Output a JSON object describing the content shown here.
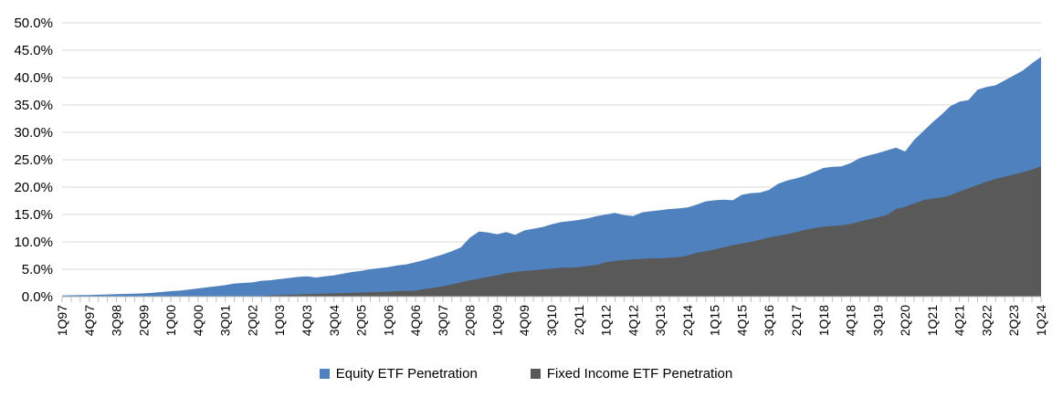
{
  "chart_data": {
    "type": "area",
    "title": "",
    "xlabel": "",
    "ylabel": "",
    "ylim": [
      0,
      50
    ],
    "grid": "horizontal",
    "legend_position": "bottom",
    "stacked": false,
    "gridline_color": "#D9D9D9",
    "axis_color": "#BFBFBF",
    "y_ticks": [
      "0.0%",
      "5.0%",
      "10.0%",
      "15.0%",
      "20.0%",
      "25.0%",
      "30.0%",
      "35.0%",
      "40.0%",
      "45.0%",
      "50.0%"
    ],
    "x_label_every": 3,
    "categories": [
      "1Q97",
      "2Q97",
      "3Q97",
      "4Q97",
      "1Q98",
      "2Q98",
      "3Q98",
      "4Q98",
      "1Q99",
      "2Q99",
      "3Q99",
      "4Q99",
      "1Q00",
      "2Q00",
      "3Q00",
      "4Q00",
      "1Q01",
      "2Q01",
      "3Q01",
      "4Q01",
      "1Q02",
      "2Q02",
      "3Q02",
      "4Q02",
      "1Q03",
      "2Q03",
      "3Q03",
      "4Q03",
      "1Q04",
      "2Q04",
      "3Q04",
      "4Q04",
      "1Q05",
      "2Q05",
      "3Q05",
      "4Q05",
      "1Q06",
      "2Q06",
      "3Q06",
      "4Q06",
      "1Q07",
      "2Q07",
      "3Q07",
      "4Q07",
      "1Q08",
      "2Q08",
      "3Q08",
      "4Q08",
      "1Q09",
      "2Q09",
      "3Q09",
      "4Q09",
      "1Q10",
      "2Q10",
      "3Q10",
      "4Q10",
      "1Q11",
      "2Q11",
      "3Q11",
      "4Q11",
      "1Q12",
      "2Q12",
      "3Q12",
      "4Q12",
      "1Q13",
      "2Q13",
      "3Q13",
      "4Q13",
      "1Q14",
      "2Q14",
      "3Q14",
      "4Q14",
      "1Q15",
      "2Q15",
      "3Q15",
      "4Q15",
      "1Q16",
      "2Q16",
      "3Q16",
      "4Q16",
      "1Q17",
      "2Q17",
      "3Q17",
      "4Q17",
      "1Q18",
      "2Q18",
      "3Q18",
      "4Q18",
      "1Q19",
      "2Q19",
      "3Q19",
      "4Q19",
      "1Q20",
      "2Q20",
      "3Q20",
      "4Q20",
      "1Q21",
      "2Q21",
      "3Q21",
      "4Q21",
      "1Q22",
      "2Q22",
      "3Q22",
      "4Q22",
      "1Q23",
      "2Q23",
      "3Q23",
      "4Q23",
      "1Q24"
    ],
    "series": [
      {
        "name": "Equity ETF Penetration",
        "color": "#4E81BD",
        "values": [
          0.2,
          0.25,
          0.3,
          0.3,
          0.35,
          0.4,
          0.45,
          0.5,
          0.55,
          0.6,
          0.7,
          0.85,
          1.0,
          1.1,
          1.3,
          1.5,
          1.7,
          1.9,
          2.1,
          2.4,
          2.5,
          2.6,
          2.9,
          3.0,
          3.2,
          3.4,
          3.6,
          3.7,
          3.5,
          3.7,
          3.9,
          4.2,
          4.5,
          4.7,
          5.0,
          5.2,
          5.4,
          5.7,
          5.9,
          6.3,
          6.7,
          7.2,
          7.7,
          8.3,
          9.0,
          10.8,
          11.9,
          11.7,
          11.4,
          11.8,
          11.3,
          12.1,
          12.4,
          12.7,
          13.2,
          13.6,
          13.8,
          14.0,
          14.3,
          14.7,
          15.0,
          15.3,
          14.9,
          14.7,
          15.4,
          15.6,
          15.8,
          16.0,
          16.1,
          16.3,
          16.8,
          17.4,
          17.6,
          17.7,
          17.6,
          18.6,
          18.9,
          19.0,
          19.5,
          20.6,
          21.2,
          21.6,
          22.1,
          22.8,
          23.5,
          23.7,
          23.8,
          24.4,
          25.3,
          25.8,
          26.2,
          26.7,
          27.2,
          26.5,
          28.6,
          30.2,
          31.8,
          33.2,
          34.8,
          35.6,
          35.9,
          37.8,
          38.3,
          38.6,
          39.5,
          40.4,
          41.3,
          42.6,
          43.8
        ]
      },
      {
        "name": "Fixed Income ETF Penetration",
        "color": "#595959",
        "values": [
          0,
          0,
          0,
          0,
          0,
          0,
          0,
          0,
          0,
          0,
          0,
          0,
          0,
          0,
          0,
          0,
          0,
          0,
          0,
          0,
          0,
          0.05,
          0.1,
          0.2,
          0.3,
          0.35,
          0.4,
          0.45,
          0.5,
          0.55,
          0.6,
          0.65,
          0.7,
          0.75,
          0.8,
          0.85,
          0.9,
          1.0,
          1.05,
          1.1,
          1.4,
          1.6,
          1.9,
          2.2,
          2.6,
          3.0,
          3.3,
          3.6,
          3.9,
          4.3,
          4.5,
          4.7,
          4.8,
          5.0,
          5.1,
          5.3,
          5.3,
          5.4,
          5.6,
          5.8,
          6.3,
          6.5,
          6.7,
          6.8,
          6.9,
          7.0,
          7.0,
          7.1,
          7.2,
          7.5,
          8.0,
          8.3,
          8.6,
          9.0,
          9.4,
          9.7,
          10.0,
          10.4,
          10.8,
          11.1,
          11.4,
          11.8,
          12.2,
          12.5,
          12.8,
          12.9,
          13.0,
          13.3,
          13.7,
          14.1,
          14.5,
          14.9,
          16.0,
          16.4,
          17.0,
          17.6,
          17.9,
          18.1,
          18.5,
          19.2,
          19.8,
          20.4,
          21.0,
          21.5,
          21.9,
          22.3,
          22.7,
          23.2,
          23.8
        ]
      }
    ]
  }
}
